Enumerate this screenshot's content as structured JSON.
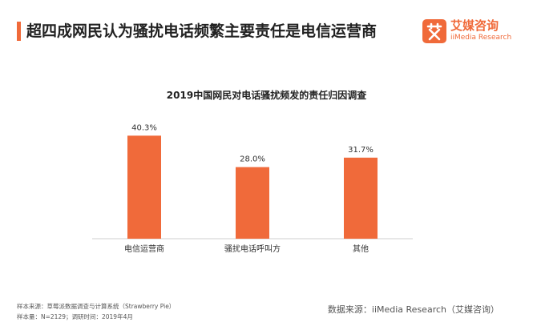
{
  "header": {
    "title": "超四成网民认为骚扰电话频繁主要责任是电信运营商"
  },
  "logo": {
    "name_cn": "艾媒咨询",
    "name_en": "iiMedia Research",
    "icon": "iimedia-logo-icon"
  },
  "colors": {
    "accent": "#f06a3a",
    "bar": "#f06a3a",
    "axis": "#cfcfcf"
  },
  "chart_data": {
    "type": "bar",
    "title": "2019中国网民对电话骚扰频发的责任归因调查",
    "categories": [
      "电信运营商",
      "骚扰电话呼叫方",
      "其他"
    ],
    "values": [
      40.3,
      28.0,
      31.7
    ],
    "value_labels": [
      "40.3%",
      "28.0%",
      "31.7%"
    ],
    "unit": "%",
    "ylim": [
      0,
      50
    ],
    "grid": false,
    "legend": "none"
  },
  "footer": {
    "sample_source": "样本来源：草莓派数据调查与计算系统（Strawberry Pie）",
    "sample_size": "样本量：N=2129；调研时间：2019年4月",
    "data_source": "数据来源：iiMedia Research（艾媒咨询）"
  }
}
